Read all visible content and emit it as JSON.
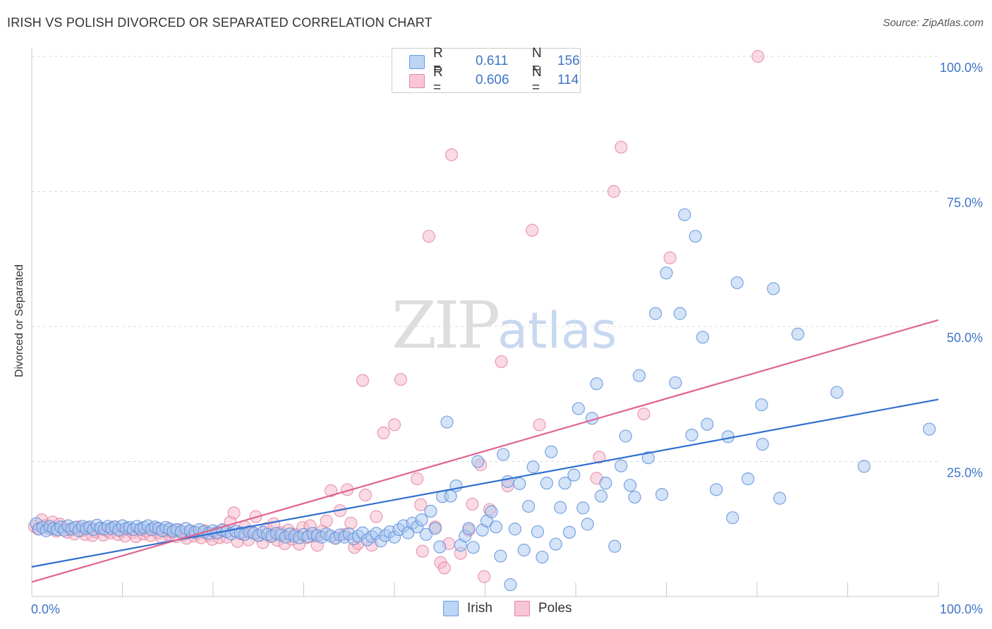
{
  "header": {
    "title": "IRISH VS POLISH DIVORCED OR SEPARATED CORRELATION CHART",
    "source": "Source: ZipAtlas.com"
  },
  "watermark": {
    "zip": "ZIP",
    "atlas": "atlas"
  },
  "legend": {
    "rows": [
      {
        "r_label": "R =",
        "r_value": "0.611",
        "n_label": "N =",
        "n_value": "156"
      },
      {
        "r_label": "R =",
        "r_value": "0.606",
        "n_label": "N =",
        "n_value": "114"
      }
    ]
  },
  "bottom_legend": [
    "Irish",
    "Poles"
  ],
  "colors": {
    "irish_fill": "#a9c8f2",
    "irish_stroke": "#5b8fd8",
    "irish_line": "#2f6fd0",
    "poles_fill": "#f6b6c8",
    "poles_stroke": "#e486a4",
    "poles_line": "#e0648f",
    "tick_label": "#3e75c8",
    "grid": "#dcdcdc"
  },
  "chart_data": {
    "type": "scatter",
    "title": "IRISH VS POLISH DIVORCED OR SEPARATED CORRELATION CHART",
    "xlabel": "",
    "ylabel": "Divorced or Separated",
    "xlim": [
      0,
      100
    ],
    "ylim": [
      0,
      100
    ],
    "x_tick_labels": [
      "0.0%",
      "100.0%"
    ],
    "y_tick_labels": [
      "25.0%",
      "50.0%",
      "75.0%",
      "100.0%"
    ],
    "y_ticks": [
      25,
      50,
      75,
      100
    ],
    "grid": true,
    "legend_position": "top-center",
    "series": [
      {
        "name": "Irish",
        "R": 0.611,
        "N": 156,
        "trend": {
          "x": [
            0,
            100
          ],
          "y": [
            5.5,
            36.5
          ]
        },
        "points": [
          [
            0.5,
            13.5
          ],
          [
            0.8,
            12.5
          ],
          [
            1.2,
            12.8
          ],
          [
            1.6,
            12.2
          ],
          [
            2.0,
            13.0
          ],
          [
            2.4,
            12.6
          ],
          [
            2.8,
            12.4
          ],
          [
            3.2,
            12.9
          ],
          [
            3.6,
            12.3
          ],
          [
            4.0,
            13.1
          ],
          [
            4.4,
            12.5
          ],
          [
            4.8,
            12.8
          ],
          [
            5.2,
            12.2
          ],
          [
            5.6,
            13.0
          ],
          [
            6.0,
            12.6
          ],
          [
            6.4,
            12.9
          ],
          [
            6.8,
            12.4
          ],
          [
            7.2,
            13.2
          ],
          [
            7.6,
            12.7
          ],
          [
            8.0,
            12.5
          ],
          [
            8.4,
            13.0
          ],
          [
            8.8,
            12.6
          ],
          [
            9.2,
            12.9
          ],
          [
            9.6,
            12.3
          ],
          [
            10.0,
            13.1
          ],
          [
            10.4,
            12.6
          ],
          [
            10.8,
            12.8
          ],
          [
            11.2,
            12.4
          ],
          [
            11.6,
            13.0
          ],
          [
            12.0,
            12.5
          ],
          [
            12.4,
            12.8
          ],
          [
            12.8,
            13.1
          ],
          [
            13.2,
            12.4
          ],
          [
            13.6,
            12.9
          ],
          [
            14.0,
            12.6
          ],
          [
            14.4,
            12.2
          ],
          [
            14.8,
            12.8
          ],
          [
            15.2,
            12.5
          ],
          [
            15.6,
            12.1
          ],
          [
            16.0,
            12.4
          ],
          [
            16.5,
            12.0
          ],
          [
            17.0,
            12.6
          ],
          [
            17.5,
            12.2
          ],
          [
            18.0,
            11.9
          ],
          [
            18.5,
            12.4
          ],
          [
            19.0,
            12.0
          ],
          [
            19.5,
            11.7
          ],
          [
            20.0,
            12.2
          ],
          [
            20.5,
            11.8
          ],
          [
            21.0,
            12.3
          ],
          [
            21.5,
            12.0
          ],
          [
            22.0,
            11.6
          ],
          [
            22.5,
            12.1
          ],
          [
            23.0,
            11.8
          ],
          [
            23.5,
            11.5
          ],
          [
            24.0,
            12.0
          ],
          [
            24.5,
            11.7
          ],
          [
            25.0,
            11.3
          ],
          [
            25.5,
            11.9
          ],
          [
            26.0,
            11.5
          ],
          [
            26.5,
            11.2
          ],
          [
            27.0,
            11.7
          ],
          [
            27.5,
            11.4
          ],
          [
            28.0,
            11.0
          ],
          [
            28.5,
            11.6
          ],
          [
            29.0,
            11.2
          ],
          [
            29.5,
            10.9
          ],
          [
            30.0,
            11.5
          ],
          [
            30.5,
            11.1
          ],
          [
            31.0,
            11.7
          ],
          [
            31.5,
            11.3
          ],
          [
            32.0,
            11.0
          ],
          [
            32.5,
            11.6
          ],
          [
            33.0,
            11.2
          ],
          [
            33.5,
            10.8
          ],
          [
            34.0,
            11.4
          ],
          [
            34.5,
            11.0
          ],
          [
            35.0,
            11.6
          ],
          [
            35.5,
            10.7
          ],
          [
            36.0,
            11.2
          ],
          [
            36.5,
            11.8
          ],
          [
            37.0,
            10.5
          ],
          [
            37.5,
            11.1
          ],
          [
            38.0,
            11.7
          ],
          [
            38.5,
            10.3
          ],
          [
            39.0,
            11.3
          ],
          [
            39.5,
            12.0
          ],
          [
            40.0,
            11.0
          ],
          [
            40.5,
            12.4
          ],
          [
            41.0,
            13.1
          ],
          [
            41.5,
            11.8
          ],
          [
            42.0,
            13.6
          ],
          [
            42.5,
            12.9
          ],
          [
            43.0,
            14.2
          ],
          [
            43.5,
            11.5
          ],
          [
            44.0,
            15.8
          ],
          [
            44.5,
            12.6
          ],
          [
            45.0,
            9.2
          ],
          [
            45.3,
            18.5
          ],
          [
            45.8,
            32.3
          ],
          [
            46.2,
            18.6
          ],
          [
            46.8,
            20.5
          ],
          [
            47.3,
            9.5
          ],
          [
            47.8,
            11.2
          ],
          [
            48.2,
            12.6
          ],
          [
            48.7,
            9.1
          ],
          [
            49.2,
            25.0
          ],
          [
            49.7,
            12.3
          ],
          [
            50.2,
            14.0
          ],
          [
            50.7,
            15.7
          ],
          [
            51.2,
            12.9
          ],
          [
            51.7,
            7.5
          ],
          [
            52.0,
            26.3
          ],
          [
            52.5,
            21.3
          ],
          [
            52.8,
            2.2
          ],
          [
            53.3,
            12.5
          ],
          [
            53.8,
            20.9
          ],
          [
            54.3,
            8.6
          ],
          [
            54.8,
            16.7
          ],
          [
            55.3,
            24.0
          ],
          [
            55.8,
            12.0
          ],
          [
            56.3,
            7.3
          ],
          [
            56.8,
            21.0
          ],
          [
            57.3,
            26.8
          ],
          [
            57.8,
            9.7
          ],
          [
            58.3,
            16.5
          ],
          [
            58.8,
            21.0
          ],
          [
            59.3,
            11.9
          ],
          [
            59.8,
            22.5
          ],
          [
            60.3,
            34.8
          ],
          [
            60.8,
            16.4
          ],
          [
            61.3,
            13.4
          ],
          [
            61.8,
            33.0
          ],
          [
            62.3,
            39.4
          ],
          [
            62.8,
            18.6
          ],
          [
            63.3,
            21.0
          ],
          [
            64.3,
            9.3
          ],
          [
            65.0,
            24.2
          ],
          [
            65.5,
            29.7
          ],
          [
            66.0,
            20.6
          ],
          [
            66.5,
            18.4
          ],
          [
            67.0,
            40.9
          ],
          [
            68.0,
            25.7
          ],
          [
            68.8,
            52.4
          ],
          [
            69.5,
            18.9
          ],
          [
            70.0,
            59.9
          ],
          [
            71.0,
            39.6
          ],
          [
            71.5,
            52.4
          ],
          [
            72.0,
            70.7
          ],
          [
            72.8,
            29.9
          ],
          [
            73.2,
            66.7
          ],
          [
            74.0,
            48.0
          ],
          [
            74.5,
            31.9
          ],
          [
            75.5,
            19.8
          ],
          [
            76.8,
            29.6
          ],
          [
            77.3,
            14.6
          ],
          [
            77.8,
            58.1
          ],
          [
            79.0,
            21.8
          ],
          [
            80.5,
            35.5
          ],
          [
            80.6,
            28.2
          ],
          [
            81.8,
            57.0
          ],
          [
            82.5,
            18.2
          ],
          [
            84.5,
            48.6
          ],
          [
            88.8,
            37.8
          ],
          [
            91.8,
            24.1
          ],
          [
            99.0,
            31.0
          ]
        ]
      },
      {
        "name": "Poles",
        "R": 0.606,
        "N": 114,
        "trend": {
          "x": [
            0,
            100
          ],
          "y": [
            2.7,
            51.2
          ]
        },
        "points": [
          [
            0.3,
            13.0
          ],
          [
            0.7,
            12.5
          ],
          [
            1.1,
            14.2
          ],
          [
            1.5,
            13.1
          ],
          [
            1.9,
            12.6
          ],
          [
            2.3,
            13.8
          ],
          [
            2.7,
            12.1
          ],
          [
            3.1,
            13.4
          ],
          [
            3.5,
            12.8
          ],
          [
            3.9,
            11.9
          ],
          [
            4.3,
            12.4
          ],
          [
            4.7,
            11.6
          ],
          [
            5.1,
            12.9
          ],
          [
            5.5,
            12.2
          ],
          [
            5.9,
            11.5
          ],
          [
            6.3,
            12.7
          ],
          [
            6.7,
            11.3
          ],
          [
            7.1,
            12.0
          ],
          [
            7.5,
            12.6
          ],
          [
            7.9,
            11.4
          ],
          [
            8.3,
            12.2
          ],
          [
            8.7,
            11.8
          ],
          [
            9.1,
            12.9
          ],
          [
            9.5,
            11.5
          ],
          [
            9.9,
            12.1
          ],
          [
            10.3,
            11.2
          ],
          [
            10.7,
            12.5
          ],
          [
            11.1,
            11.9
          ],
          [
            11.5,
            11.1
          ],
          [
            11.9,
            12.4
          ],
          [
            12.3,
            11.6
          ],
          [
            12.7,
            12.1
          ],
          [
            13.1,
            11.3
          ],
          [
            13.5,
            12.6
          ],
          [
            13.9,
            11.8
          ],
          [
            14.3,
            11.0
          ],
          [
            14.7,
            12.2
          ],
          [
            15.1,
            11.5
          ],
          [
            15.5,
            11.9
          ],
          [
            15.9,
            11.1
          ],
          [
            16.3,
            12.3
          ],
          [
            16.7,
            11.4
          ],
          [
            17.1,
            10.8
          ],
          [
            17.5,
            12.0
          ],
          [
            17.9,
            11.2
          ],
          [
            18.3,
            11.7
          ],
          [
            18.7,
            10.9
          ],
          [
            19.1,
            12.2
          ],
          [
            19.5,
            11.3
          ],
          [
            19.9,
            10.6
          ],
          [
            20.3,
            11.8
          ],
          [
            20.7,
            10.9
          ],
          [
            21.1,
            12.4
          ],
          [
            21.5,
            11.0
          ],
          [
            21.9,
            13.8
          ],
          [
            22.3,
            15.5
          ],
          [
            22.7,
            10.2
          ],
          [
            23.1,
            11.6
          ],
          [
            23.5,
            12.9
          ],
          [
            23.9,
            10.5
          ],
          [
            24.3,
            12.0
          ],
          [
            24.7,
            14.8
          ],
          [
            25.1,
            11.3
          ],
          [
            25.5,
            10.0
          ],
          [
            25.9,
            12.6
          ],
          [
            26.3,
            11.1
          ],
          [
            26.7,
            13.5
          ],
          [
            27.1,
            10.4
          ],
          [
            27.5,
            11.8
          ],
          [
            27.9,
            9.8
          ],
          [
            28.3,
            12.3
          ],
          [
            28.7,
            10.6
          ],
          [
            29.1,
            11.5
          ],
          [
            29.5,
            9.7
          ],
          [
            29.9,
            12.8
          ],
          [
            30.3,
            10.9
          ],
          [
            30.7,
            13.1
          ],
          [
            31.1,
            11.2
          ],
          [
            31.5,
            9.5
          ],
          [
            32.0,
            12.1
          ],
          [
            32.5,
            14.0
          ],
          [
            33.0,
            19.6
          ],
          [
            33.5,
            10.8
          ],
          [
            34.0,
            15.9
          ],
          [
            34.5,
            11.5
          ],
          [
            34.8,
            19.8
          ],
          [
            35.2,
            13.6
          ],
          [
            35.6,
            9.1
          ],
          [
            36.0,
            9.8
          ],
          [
            36.5,
            40.0
          ],
          [
            36.8,
            18.8
          ],
          [
            37.5,
            9.5
          ],
          [
            38.0,
            14.8
          ],
          [
            38.8,
            30.3
          ],
          [
            40.0,
            31.8
          ],
          [
            40.7,
            40.2
          ],
          [
            42.5,
            21.8
          ],
          [
            42.9,
            17.0
          ],
          [
            43.1,
            8.4
          ],
          [
            43.8,
            66.7
          ],
          [
            44.5,
            12.9
          ],
          [
            45.1,
            6.3
          ],
          [
            45.5,
            5.3
          ],
          [
            46.0,
            9.8
          ],
          [
            46.3,
            81.8
          ],
          [
            47.3,
            8.0
          ],
          [
            48.2,
            12.3
          ],
          [
            48.6,
            17.1
          ],
          [
            49.5,
            24.4
          ],
          [
            49.9,
            3.7
          ],
          [
            50.5,
            16.1
          ],
          [
            51.8,
            43.5
          ],
          [
            52.5,
            20.5
          ],
          [
            55.2,
            67.8
          ],
          [
            56.0,
            31.8
          ],
          [
            62.3,
            21.9
          ],
          [
            62.6,
            25.8
          ],
          [
            64.2,
            75.0
          ],
          [
            65.0,
            83.2
          ],
          [
            67.5,
            33.8
          ],
          [
            70.4,
            62.7
          ],
          [
            80.1,
            100.0
          ]
        ]
      }
    ]
  }
}
